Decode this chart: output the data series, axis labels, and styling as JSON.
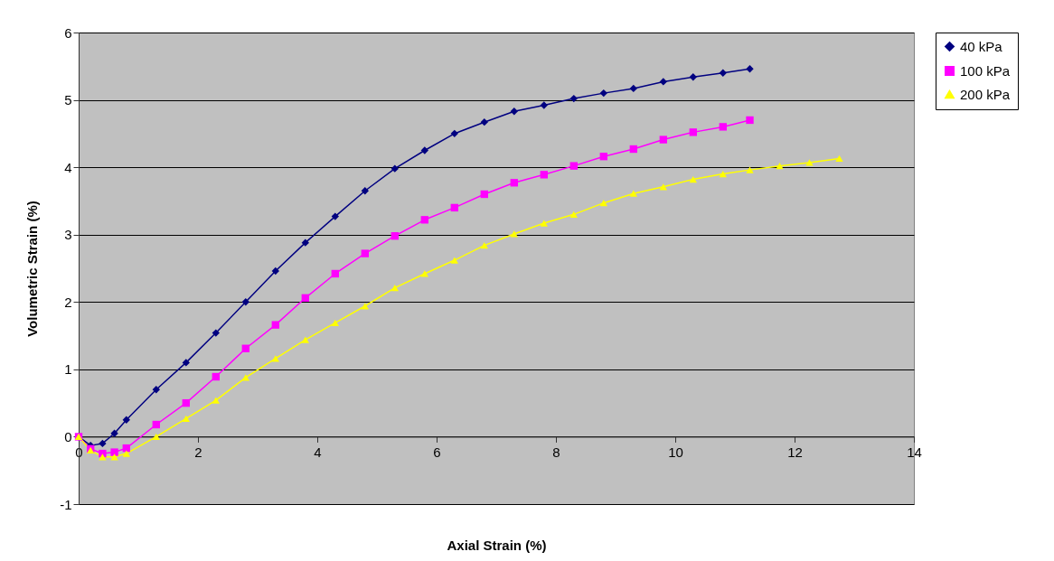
{
  "chart_data": {
    "type": "line",
    "xlabel": "Axial Strain (%)",
    "ylabel": "Volumetric Strain (%)",
    "xlim": [
      0,
      14
    ],
    "xticks": [
      0,
      2,
      4,
      6,
      8,
      10,
      12,
      14
    ],
    "ylim": [
      -1,
      6
    ],
    "yticks": [
      -1,
      0,
      1,
      2,
      3,
      4,
      5,
      6
    ],
    "grid": "y",
    "legend": "right",
    "series": [
      {
        "name": "40 kPa",
        "color": "#000080",
        "marker": "diamond",
        "x": [
          0,
          0.2,
          0.4,
          0.6,
          0.8,
          1.3,
          1.8,
          2.3,
          2.8,
          3.3,
          3.8,
          4.3,
          4.8,
          5.3,
          5.8,
          6.3,
          6.8,
          7.3,
          7.8,
          8.3,
          8.8,
          9.3,
          9.8,
          10.3,
          10.8,
          11.25
        ],
        "values": [
          0,
          -0.13,
          -0.1,
          0.05,
          0.25,
          0.7,
          1.1,
          1.54,
          2.0,
          2.46,
          2.88,
          3.27,
          3.65,
          3.98,
          4.25,
          4.5,
          4.67,
          4.83,
          4.92,
          5.02,
          5.1,
          5.17,
          5.27,
          5.34,
          5.4,
          5.46
        ]
      },
      {
        "name": "100 kPa",
        "color": "#ff00ff",
        "marker": "square",
        "x": [
          0,
          0.2,
          0.4,
          0.6,
          0.8,
          1.3,
          1.8,
          2.3,
          2.8,
          3.3,
          3.8,
          4.3,
          4.8,
          5.3,
          5.8,
          6.3,
          6.8,
          7.3,
          7.8,
          8.3,
          8.8,
          9.3,
          9.8,
          10.3,
          10.8,
          11.25
        ],
        "values": [
          0,
          -0.18,
          -0.25,
          -0.23,
          -0.17,
          0.18,
          0.5,
          0.89,
          1.31,
          1.66,
          2.06,
          2.42,
          2.72,
          2.98,
          3.22,
          3.4,
          3.6,
          3.77,
          3.89,
          4.02,
          4.16,
          4.27,
          4.41,
          4.52,
          4.6,
          4.7
        ]
      },
      {
        "name": "200 kPa",
        "color": "#ffff00",
        "marker": "triangle",
        "x": [
          0,
          0.2,
          0.4,
          0.6,
          0.8,
          1.3,
          1.8,
          2.3,
          2.8,
          3.3,
          3.8,
          4.3,
          4.8,
          5.3,
          5.8,
          6.3,
          6.8,
          7.3,
          7.8,
          8.3,
          8.8,
          9.3,
          9.8,
          10.3,
          10.8,
          11.25,
          11.75,
          12.25,
          12.75
        ],
        "values": [
          0,
          -0.2,
          -0.3,
          -0.3,
          -0.25,
          0,
          0.27,
          0.54,
          0.88,
          1.16,
          1.44,
          1.69,
          1.94,
          2.21,
          2.42,
          2.62,
          2.84,
          3.01,
          3.17,
          3.3,
          3.47,
          3.61,
          3.71,
          3.82,
          3.9,
          3.96,
          4.02,
          4.07,
          4.13
        ]
      }
    ]
  }
}
